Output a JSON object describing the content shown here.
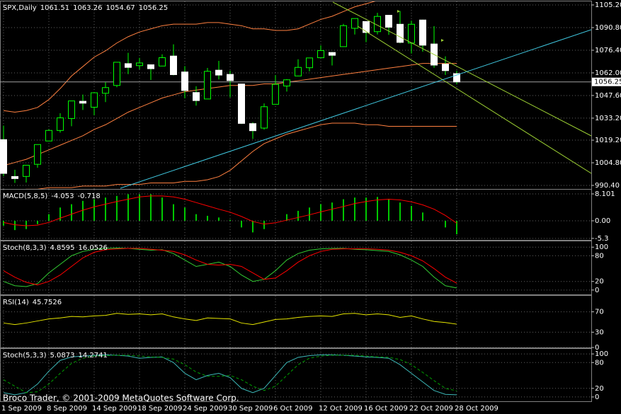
{
  "watermark": "Broco Trader, © 2001-2009 MetaQuotes Software Corp.",
  "chart_data": [
    {
      "type": "candlestick",
      "title": "SPX,Daily",
      "grid": true,
      "up_color": "#00ff00",
      "down_color": "#ffffff",
      "categories": [
        "1 Sep 2009",
        null,
        null,
        null,
        "8 Sep 2009",
        null,
        null,
        null,
        "14 Sep 2009",
        null,
        null,
        null,
        "18 Sep 2009",
        null,
        null,
        null,
        "24 Sep 2009",
        null,
        null,
        null,
        "30 Sep 2009",
        null,
        null,
        null,
        "6 Oct 2009",
        null,
        null,
        null,
        "12 Oct 2009",
        null,
        null,
        null,
        "16 Oct 2009",
        null,
        null,
        null,
        "22 Oct 2009",
        null,
        null,
        null,
        "28 Oct 2009"
      ],
      "open": [
        1019.52,
        996.07,
        996.12,
        1003.84,
        1018.67,
        1025.36,
        1032.99,
        1043.92,
        1040.15,
        1049.03,
        1053.99,
        1067.87,
        1066.6,
        1067.14,
        1066.35,
        1072.69,
        1062.56,
        1049.48,
        1045.38,
        1063.69,
        1061.02,
        1054.91,
        1029.71,
        1026.87,
        1042.02,
        1053.65,
        1060.03,
        1065.28,
        1071.63,
        1074.96,
        1078.68,
        1090.36,
        1094.67,
        1088.22,
        1098.64,
        1092.91,
        1080.96,
        1095.62,
        1080.36,
        1067.54,
        1061.51
      ],
      "high": [
        1028.45,
        1000.34,
        1003.43,
        1016.48,
        1026.07,
        1036.34,
        1044.14,
        1048.18,
        1049.74,
        1056.04,
        1068.76,
        1074.77,
        1071.52,
        1067.28,
        1073.81,
        1080.15,
        1066.29,
        1053.47,
        1065.13,
        1069.62,
        1063.4,
        1054.91,
        1030.6,
        1042.58,
        1060.55,
        1058.02,
        1070.67,
        1071.51,
        1079.46,
        1075.3,
        1093.17,
        1096.56,
        1094.67,
        1100.17,
        1098.64,
        1101.36,
        1095.21,
        1095.83,
        1091.75,
        1072.48,
        1063.26
      ],
      "low": [
        996.28,
        991.97,
        992.25,
        1001.65,
        1018.67,
        1023.97,
        1028.04,
        1038.4,
        1035,
        1043.42,
        1052.87,
        1061.2,
        1064.27,
        1057.46,
        1066.35,
        1060.39,
        1045.85,
        1041.17,
        1045.38,
        1057.83,
        1046.47,
        1029.45,
        1019.95,
        1025.92,
        1042.02,
        1050.1,
        1060.03,
        1063,
        1071.63,
        1066.71,
        1078.68,
        1086.41,
        1081.53,
        1086.48,
        1086.16,
        1080.77,
        1074.31,
        1075.49,
        1065.23,
        1060.62,
        1054.67
      ],
      "close": [
        998.04,
        994.75,
        1003.24,
        1016.4,
        1025.39,
        1033.37,
        1044.14,
        1042.73,
        1049.34,
        1052.63,
        1068.76,
        1065.49,
        1068.3,
        1064.66,
        1071.66,
        1060.87,
        1050.78,
        1044.38,
        1062.98,
        1060.61,
        1057.08,
        1029.85,
        1025.21,
        1040.46,
        1054.72,
        1057.58,
        1065.48,
        1071.49,
        1076.19,
        1073.19,
        1092.02,
        1096.56,
        1087.68,
        1097.91,
        1091.06,
        1081.4,
        1092.91,
        1079.6,
        1066.95,
        1063.41,
        1056.25
      ],
      "bands": [
        {
          "color": "#ff8040",
          "values": [
            1038,
            1037,
            1038,
            1040,
            1045,
            1052,
            1060,
            1066,
            1072,
            1076,
            1081,
            1085,
            1088,
            1090,
            1092,
            1093,
            1093,
            1093,
            1094,
            1094,
            1093,
            1092,
            1090,
            1090,
            1089,
            1089,
            1090,
            1093,
            1096,
            1098,
            1101,
            1104,
            1106,
            1108,
            1109,
            1110,
            1111,
            1112,
            1112,
            1112,
            1112
          ]
        },
        {
          "color": "#ff8040",
          "values": [
            1003,
            1005,
            1007,
            1010,
            1013,
            1016,
            1019,
            1022,
            1026,
            1029,
            1033,
            1037,
            1040,
            1043,
            1046,
            1048,
            1050,
            1051,
            1052,
            1053,
            1054,
            1054,
            1054,
            1055,
            1055,
            1056,
            1057,
            1058,
            1059,
            1060,
            1061,
            1062,
            1063,
            1064,
            1065,
            1066,
            1067,
            1068,
            1068,
            1068,
            1068
          ]
        },
        {
          "color": "#ff8040",
          "values": [
            987,
            987,
            988,
            988,
            989,
            989,
            989,
            990,
            990,
            990,
            991,
            991,
            991,
            992,
            992,
            992,
            993,
            993,
            994,
            996,
            1000,
            1006,
            1012,
            1017,
            1020,
            1023,
            1025,
            1027,
            1029,
            1030,
            1030,
            1030,
            1029,
            1029,
            1028,
            1028,
            1028,
            1028,
            1028,
            1028,
            1028
          ]
        }
      ],
      "ylim": [
        988.15,
        1107.45
      ],
      "yticks": [
        {
          "value": 1105.2,
          "label": "1105.20"
        },
        {
          "value": 1090.8,
          "label": "1090.80"
        },
        {
          "value": 1076.4,
          "label": "1076.40"
        },
        {
          "value": 1062,
          "label": "1062.00"
        },
        {
          "value": 1047.6,
          "label": "1047.60"
        },
        {
          "value": 1033.2,
          "label": "1033.20"
        },
        {
          "value": 1019.2,
          "label": "1019.20"
        },
        {
          "value": 1004.8,
          "label": "1004.80"
        },
        {
          "value": 990.4,
          "label": "990.40"
        }
      ]
    },
    {
      "type": "bar",
      "title": "MACD(5,8,5)",
      "grid": true,
      "ylim": [
        -5.76,
        9.38
      ],
      "yticks": [
        8.101,
        {
          "value": 0,
          "label": "0.00"
        },
        -5.3
      ],
      "series": [
        {
          "color": "#00c800",
          "style": "bar",
          "values": [
            -1.5,
            -2.8,
            -2.5,
            -1,
            2,
            4,
            5,
            6,
            6.5,
            7,
            7.5,
            8,
            8,
            8,
            7,
            5,
            4,
            2,
            1.5,
            1,
            0.3,
            -2,
            -3.5,
            -2.5,
            0,
            2,
            3,
            4,
            5,
            5.5,
            6.5,
            7,
            7,
            7.2,
            6.5,
            5.5,
            4.5,
            2.5,
            0,
            -2,
            -4.053
          ]
        },
        {
          "color": "#ff0000",
          "style": "line",
          "values": [
            -0.5,
            -1.2,
            -1.5,
            -1.3,
            -0.5,
            0.8,
            2.0,
            3.2,
            4.2,
            5.0,
            5.8,
            6.5,
            7.2,
            7.5,
            7.5,
            7.2,
            6.5,
            5.5,
            4.5,
            3.5,
            2.6,
            1.3,
            -0.2,
            -1.0,
            -0.6,
            0.2,
            1.0,
            1.8,
            2.7,
            3.5,
            4.3,
            5.2,
            5.8,
            6.3,
            6.5,
            6.3,
            5.7,
            4.8,
            3.5,
            1.6,
            -0.718
          ]
        }
      ]
    },
    {
      "type": "line",
      "title": "Stoch(8,3,3)",
      "grid": true,
      "ylim": [
        -10.2,
        113.6
      ],
      "yticks": [
        100,
        80,
        20,
        0
      ],
      "series": [
        {
          "color": "#33cc33",
          "style": "line",
          "values": [
            20,
            10,
            8,
            15,
            40,
            60,
            80,
            90,
            95,
            97,
            98,
            97,
            95,
            93,
            94,
            85,
            70,
            55,
            60,
            65,
            55,
            35,
            20,
            25,
            45,
            70,
            85,
            93,
            96,
            97,
            97,
            95,
            94,
            92,
            90,
            82,
            70,
            55,
            30,
            10,
            4.8595
          ]
        },
        {
          "color": "#ff0000",
          "style": "line",
          "values": [
            45,
            30,
            18,
            12,
            20,
            35,
            55,
            75,
            88,
            94,
            96,
            97,
            97,
            95,
            93,
            90,
            82,
            70,
            60,
            58,
            60,
            55,
            40,
            25,
            28,
            45,
            65,
            80,
            90,
            95,
            96,
            96,
            96,
            95,
            93,
            88,
            80,
            68,
            50,
            30,
            16.0526
          ]
        }
      ]
    },
    {
      "type": "line",
      "title": "RSI(14)",
      "grid": true,
      "ylim": [
        0,
        101.4
      ],
      "yticks": [
        70,
        30,
        0
      ],
      "series": [
        {
          "color": "#e6e600",
          "style": "line",
          "values": [
            48,
            45,
            48,
            52,
            56,
            58,
            61,
            60,
            62,
            63,
            67,
            65,
            66,
            64,
            66,
            60,
            56,
            53,
            58,
            57,
            56,
            48,
            45,
            50,
            55,
            56,
            59,
            61,
            62,
            61,
            66,
            67,
            64,
            66,
            64,
            59,
            62,
            56,
            51,
            49,
            45.7526
          ]
        }
      ]
    },
    {
      "type": "line",
      "title": "Stoch(5,3,3)",
      "grid": true,
      "ylim": [
        -10,
        111.7
      ],
      "yticks": [
        100,
        80,
        20,
        0
      ],
      "series": [
        {
          "color": "#3cb8b8",
          "style": "line",
          "values": [
            10,
            5,
            10,
            30,
            60,
            85,
            93,
            95,
            97,
            98,
            97,
            95,
            90,
            92,
            93,
            80,
            55,
            40,
            50,
            55,
            45,
            20,
            10,
            20,
            50,
            80,
            92,
            96,
            98,
            98,
            97,
            95,
            93,
            92,
            90,
            75,
            55,
            35,
            15,
            6,
            5.0873
          ]
        },
        {
          "color": "#00a000",
          "style": "dashed",
          "values": [
            40,
            25,
            10,
            12,
            30,
            55,
            78,
            90,
            95,
            96,
            97,
            97,
            95,
            93,
            92,
            88,
            75,
            58,
            48,
            48,
            50,
            40,
            25,
            15,
            25,
            50,
            75,
            90,
            95,
            97,
            97,
            97,
            95,
            93,
            92,
            87,
            75,
            57,
            38,
            20,
            14.2741
          ]
        }
      ]
    }
  ]
}
